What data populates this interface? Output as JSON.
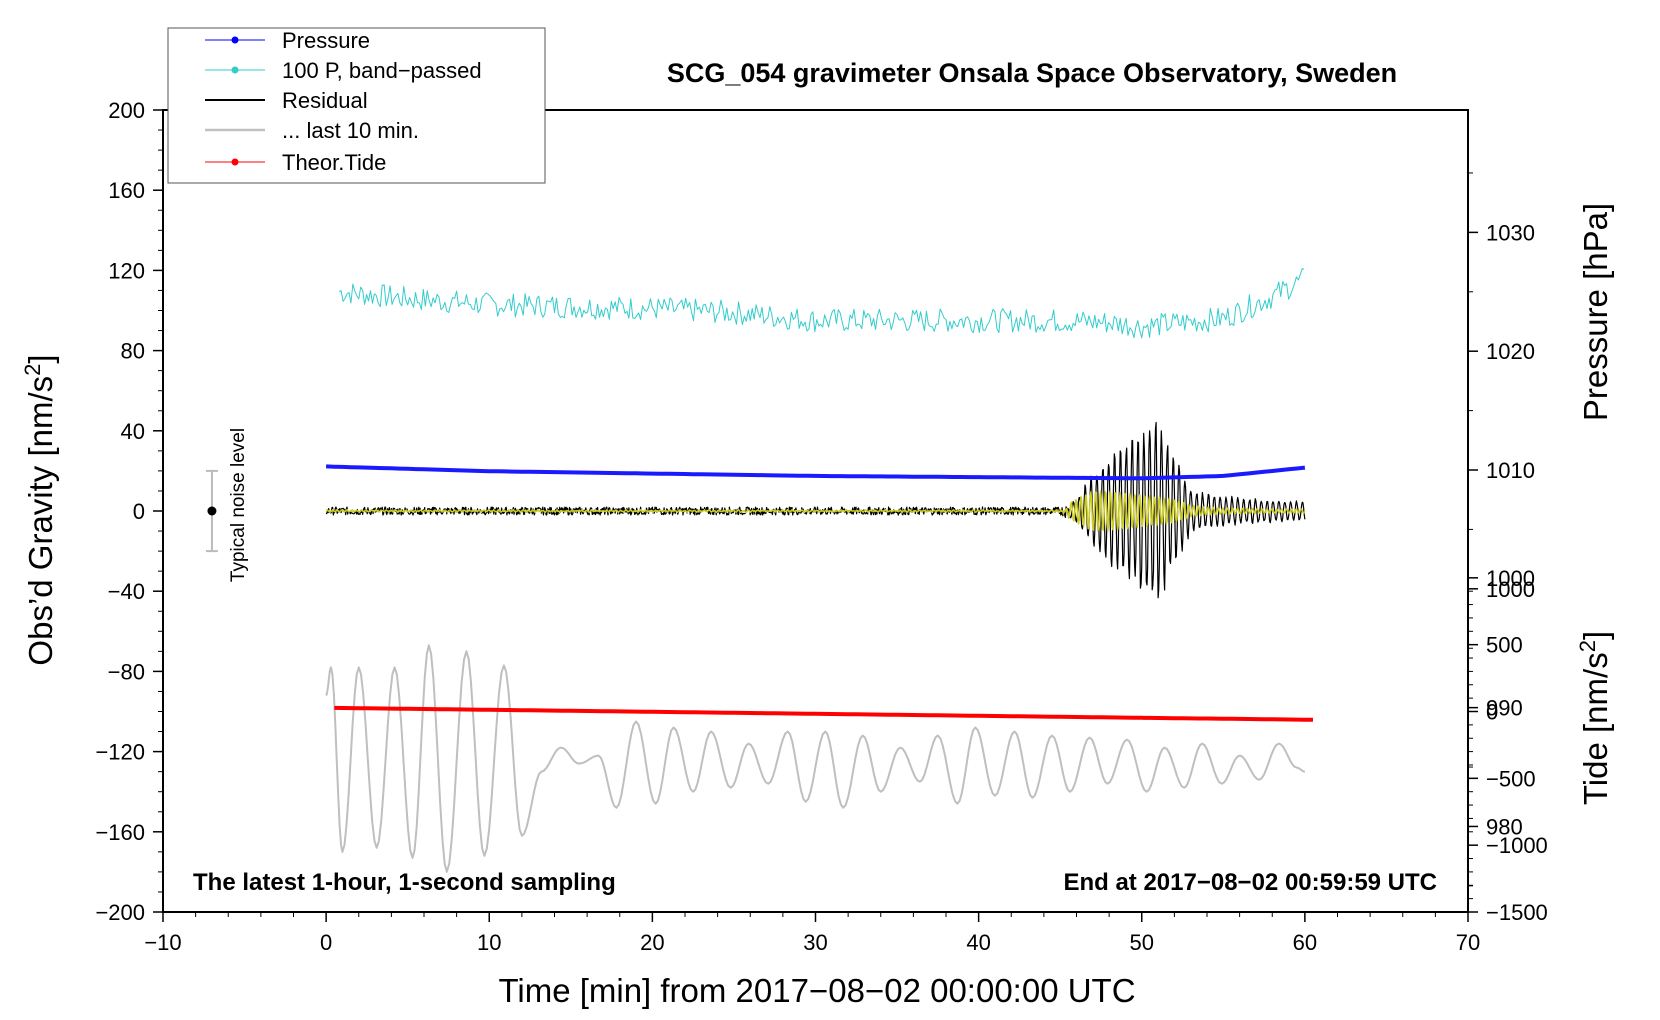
{
  "chart_data": {
    "type": "line",
    "title": "SCG_054 gravimeter Onsala Space Observatory, Sweden",
    "xlabel": "Time [min] from 2017−08−02 00:00:00 UTC",
    "ylabel_left": "Obs’d Gravity [nm/s",
    "ylabel_left_sup": "2",
    "ylabel_left_close": "]",
    "ylabel_pressure": "Pressure [hPa]",
    "ylabel_tide": "Tide [nm/s",
    "ylabel_tide_sup": "2",
    "ylabel_tide_close": "]",
    "xlim": [
      -10,
      70
    ],
    "ylim": [
      -200,
      200
    ],
    "pressure_lim": [
      972.8,
      1040.3
    ],
    "tide_lim": [
      -1500,
      4500
    ],
    "x_ticks": [
      "−10",
      "0",
      "10",
      "20",
      "30",
      "40",
      "50",
      "60",
      "70"
    ],
    "y_ticks": [
      "200",
      "160",
      "120",
      "80",
      "40",
      "0",
      "−40",
      "−80",
      "−120",
      "−160",
      "−200"
    ],
    "pressure_ticks": [
      "1030",
      "1020",
      "1010",
      "1000",
      "990",
      "980"
    ],
    "tide_ticks": [
      "1000",
      "500",
      "0",
      "−500",
      "−1000",
      "−1500"
    ],
    "bottom_left_note": "The latest 1-hour, 1-second sampling",
    "bottom_right_note": "End at 2017−08−02 00:59:59 UTC",
    "noise_label": "Typical noise level",
    "noise_bar": {
      "x": -7,
      "center": 0,
      "low": -20,
      "high": 20
    },
    "legend": [
      {
        "label": "Pressure",
        "color": "#0000ff"
      },
      {
        "label": "100 P, band−passed",
        "color": "#33cccc"
      },
      {
        "label": "Residual",
        "color": "#000000"
      },
      {
        "label": "... last 10 min.",
        "color": "#c0c0c0"
      },
      {
        "label": "Theor.Tide",
        "color": "#ff0000"
      }
    ],
    "series": [
      {
        "name": "Pressure",
        "axis": "pressure",
        "color": "#1a1aff",
        "x": [
          0,
          10,
          20,
          30,
          40,
          50,
          55,
          60
        ],
        "values": [
          1010.3,
          1009.9,
          1009.7,
          1009.5,
          1009.4,
          1009.3,
          1009.5,
          1010.2
        ]
      },
      {
        "name": "100 P, band−passed",
        "axis": "gravity",
        "color": "#33cccc",
        "noise": 6,
        "x": [
          0,
          5,
          10,
          15,
          20,
          25,
          30,
          35,
          40,
          45,
          48,
          50,
          55,
          58,
          60
        ],
        "values": [
          110,
          106,
          103,
          102,
          101,
          99,
          95,
          95,
          95,
          95,
          94,
          92,
          96,
          107,
          116
        ]
      },
      {
        "name": "Residual",
        "axis": "gravity",
        "color": "#000000",
        "envelope": {
          "x": [
            0,
            45,
            46,
            47,
            48,
            49,
            50,
            51,
            52,
            53,
            54,
            56,
            58,
            60
          ],
          "amp": [
            2,
            2,
            6,
            20,
            28,
            38,
            45,
            52,
            30,
            12,
            9,
            7,
            6,
            5
          ]
        }
      },
      {
        "name": "Yellow filtered",
        "axis": "gravity",
        "color": "#cccc22",
        "envelope": {
          "x": [
            0,
            45,
            46,
            47,
            48,
            49,
            50,
            51,
            52,
            53,
            54,
            55,
            58,
            60
          ],
          "amp": [
            1,
            1,
            6,
            10,
            10,
            9,
            8,
            7,
            6,
            3,
            2,
            1.5,
            1,
            1
          ]
        }
      },
      {
        "name": "... last 10 min.",
        "axis": "gravity",
        "color": "#bfbfbf",
        "x": [
          0,
          0.3,
          1.0,
          2.0,
          3.1,
          4.2,
          5.3,
          6.3,
          7.4,
          8.6,
          9.7,
          10.9,
          12.0,
          13.2,
          14.4,
          15.5,
          16.7,
          17.8,
          19.0,
          20.2,
          21.3,
          22.5,
          23.6,
          24.8,
          25.9,
          27.1,
          28.3,
          29.4,
          30.6,
          31.7,
          32.9,
          34.0,
          35.2,
          36.4,
          37.5,
          38.7,
          39.8,
          41.0,
          42.2,
          43.3,
          44.5,
          45.6,
          46.8,
          47.9,
          49.1,
          50.3,
          51.4,
          52.6,
          53.7,
          54.9,
          56.0,
          57.2,
          58.4,
          59.5,
          60.0
        ],
        "values": [
          -92,
          -78,
          -170,
          -78,
          -168,
          -78,
          -173,
          -67,
          -180,
          -70,
          -172,
          -77,
          -162,
          -130,
          -118,
          -126,
          -122,
          -148,
          -105,
          -146,
          -108,
          -140,
          -110,
          -138,
          -116,
          -136,
          -110,
          -145,
          -110,
          -148,
          -112,
          -140,
          -118,
          -135,
          -112,
          -146,
          -108,
          -142,
          -110,
          -143,
          -112,
          -140,
          -113,
          -136,
          -114,
          -140,
          -118,
          -138,
          -116,
          -136,
          -122,
          -134,
          -116,
          -128,
          -130
        ]
      },
      {
        "name": "Theor.Tide",
        "axis": "tide",
        "color": "#ff0000",
        "x": [
          0.5,
          10,
          20,
          30,
          40,
          50,
          60.5
        ],
        "values": [
          27,
          13,
          -2,
          -17,
          -32,
          -47,
          -62
        ]
      }
    ]
  }
}
